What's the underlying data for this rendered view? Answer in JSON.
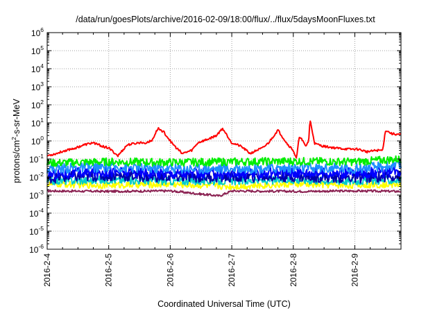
{
  "chart_data": {
    "type": "line",
    "title": "/data/run/goesPlots/archive/2016-02-09/18:00/flux/../flux/5daysMoonFluxes.txt",
    "xlabel": "Coordinated Universal Time (UTC)",
    "ylabel": {
      "before": "protons/cm",
      "sup": "2",
      "after": "-s-sr-MeV"
    },
    "y_scale": "log",
    "ylim_exponent": [
      -6,
      6
    ],
    "yticks": [
      {
        "base": "10",
        "exp": "6"
      },
      {
        "base": "10",
        "exp": "5"
      },
      {
        "base": "10",
        "exp": "4"
      },
      {
        "base": "10",
        "exp": "3"
      },
      {
        "base": "10",
        "exp": "2"
      },
      {
        "base": "10",
        "exp": "1"
      },
      {
        "base": "10",
        "exp": "0"
      },
      {
        "base": "10",
        "exp": "-1"
      },
      {
        "base": "10",
        "exp": "-2"
      },
      {
        "base": "10",
        "exp": "-3"
      },
      {
        "base": "10",
        "exp": "-4"
      },
      {
        "base": "10",
        "exp": "-5"
      },
      {
        "base": "10",
        "exp": "-6"
      }
    ],
    "xticks": [
      "2016-2-4",
      "2016-2-5",
      "2016-2-6",
      "2016-2-7",
      "2016-2-8",
      "2016-2-9"
    ],
    "xlim_days": [
      0,
      5.75
    ],
    "grid": true,
    "colors": {
      "red": "#ff0000",
      "green": "#00ee00",
      "dodgerblue": "#1e90ff",
      "blue": "#0000ff",
      "cyan": "#00cccc",
      "navy": "#0000aa",
      "yellow": "#ffff00",
      "purple": "#8b2252"
    },
    "series": [
      {
        "color": "purple",
        "x": [
          0,
          1,
          2,
          2.8,
          3,
          4,
          5,
          5.75
        ],
        "y": [
          0.0017,
          0.0016,
          0.0017,
          0.0009,
          0.0017,
          0.0016,
          0.0017,
          0.0016
        ]
      },
      {
        "color": "yellow",
        "x": [
          0,
          1,
          2,
          3,
          4,
          5,
          5.75
        ],
        "y": [
          0.004,
          0.0035,
          0.004,
          0.003,
          0.004,
          0.0035,
          0.004
        ]
      },
      {
        "color": "cyan",
        "x": [
          0,
          1,
          2,
          3,
          4,
          5,
          5.75
        ],
        "y": [
          0.006,
          0.007,
          0.006,
          0.006,
          0.007,
          0.006,
          0.007
        ]
      },
      {
        "color": "navy",
        "x": [
          0,
          1,
          2,
          3,
          4,
          5,
          5.75
        ],
        "y": [
          0.009,
          0.012,
          0.01,
          0.01,
          0.011,
          0.009,
          0.012
        ]
      },
      {
        "color": "blue",
        "x": [
          0,
          1,
          2,
          3,
          4,
          5,
          5.75
        ],
        "y": [
          0.014,
          0.02,
          0.016,
          0.015,
          0.018,
          0.016,
          0.02
        ]
      },
      {
        "color": "dodgerblue",
        "x": [
          0,
          1,
          2,
          3,
          4,
          5,
          5.75
        ],
        "y": [
          0.03,
          0.035,
          0.03,
          0.03,
          0.032,
          0.03,
          0.045
        ]
      },
      {
        "color": "green",
        "x": [
          0,
          1,
          2,
          3,
          4,
          5,
          5.75
        ],
        "y": [
          0.06,
          0.07,
          0.065,
          0.07,
          0.075,
          0.07,
          0.1
        ]
      },
      {
        "color": "red",
        "x": [
          0,
          0.15,
          0.3,
          0.45,
          0.6,
          0.75,
          0.9,
          1.0,
          1.15,
          1.3,
          1.5,
          1.6,
          1.7,
          1.8,
          1.9,
          2.0,
          2.1,
          2.2,
          2.35,
          2.45,
          2.6,
          2.75,
          2.85,
          3.0,
          3.15,
          3.3,
          3.4,
          3.5,
          3.6,
          3.75,
          3.9,
          4.0,
          4.05,
          4.1,
          4.2,
          4.25,
          4.27,
          4.35,
          4.5,
          4.7,
          4.9,
          5.05,
          5.2,
          5.35,
          5.45,
          5.5,
          5.6,
          5.75
        ],
        "y": [
          0.15,
          0.2,
          0.3,
          0.4,
          0.6,
          0.8,
          0.5,
          0.4,
          0.15,
          0.6,
          0.8,
          0.8,
          1.0,
          5.0,
          3.0,
          1.0,
          0.4,
          0.2,
          0.3,
          0.8,
          1.2,
          2.0,
          5.0,
          0.8,
          0.5,
          0.2,
          0.3,
          0.4,
          0.8,
          4.0,
          0.7,
          0.3,
          0.1,
          2.0,
          0.5,
          1.0,
          15.0,
          0.7,
          0.5,
          0.4,
          0.35,
          0.35,
          0.25,
          0.3,
          0.3,
          4.0,
          2.5,
          2.2
        ]
      }
    ]
  }
}
